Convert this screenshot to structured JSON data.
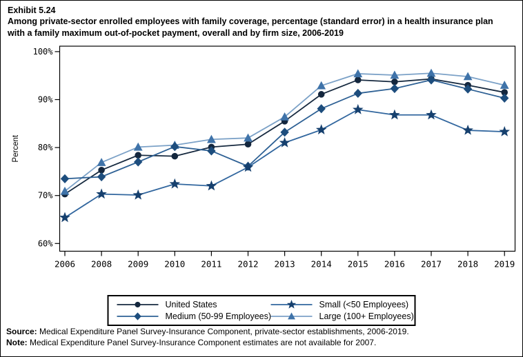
{
  "page": {
    "exhibit_label": "Exhibit 5.24",
    "title": "Among private-sector enrolled employees with family coverage, percentage (standard error) in a health insurance plan with a family maximum out-of-pocket payment, overall and by firm size, 2006-2019",
    "source_label": "Source:",
    "source_text": "Medical Expenditure Panel Survey-Insurance Component, private-sector establishments, 2006-2019.",
    "note_label": "Note:",
    "note_text": "Medical Expenditure Panel Survey-Insurance Component estimates are not available for 2007."
  },
  "chart_data": {
    "type": "line",
    "title": "Percentage in a health insurance plan with a family maximum out-of-pocket payment, overall and by firm size, 2006-2019",
    "xlabel": "",
    "ylabel": "Percent",
    "x": [
      2006,
      2008,
      2009,
      2010,
      2011,
      2012,
      2013,
      2014,
      2015,
      2016,
      2017,
      2018,
      2019
    ],
    "ylim": [
      60,
      100
    ],
    "yticks": [
      100,
      90,
      80,
      70,
      60
    ],
    "ytick_labels": [
      "100%",
      "90%",
      "80%",
      "70%",
      "60%"
    ],
    "grid": false,
    "legend_position": "bottom",
    "series": [
      {
        "key": "us",
        "name": "United States",
        "marker": "circle",
        "line_color": "#16293f",
        "marker_color": "#14273e",
        "values": [
          70.3,
          75.3,
          78.4,
          78.2,
          80.1,
          80.7,
          85.5,
          91.1,
          94.1,
          93.7,
          94.3,
          93.0,
          91.5
        ]
      },
      {
        "key": "small",
        "name": "Small (<50 Employees)",
        "marker": "star",
        "line_color": "#31669e",
        "marker_color": "#16406e",
        "values": [
          65.4,
          70.3,
          70.1,
          72.4,
          72.0,
          75.9,
          81.0,
          83.7,
          87.9,
          86.8,
          86.8,
          83.6,
          83.3
        ]
      },
      {
        "key": "medium",
        "name": "Medium (50-99 Employees)",
        "marker": "diamond",
        "line_color": "#2d6094",
        "marker_color": "#1d4d7d",
        "values": [
          73.5,
          73.9,
          77.0,
          80.2,
          79.3,
          76.1,
          83.2,
          88.1,
          91.3,
          92.3,
          94.1,
          92.2,
          90.3
        ]
      },
      {
        "key": "large",
        "name": "Large (100+ Employees)",
        "marker": "triangle",
        "line_color": "#7ba1c7",
        "marker_color": "#3f73a9",
        "values": [
          70.9,
          76.9,
          80.1,
          80.5,
          81.7,
          82.0,
          86.4,
          92.9,
          95.4,
          95.1,
          95.5,
          94.8,
          93.0
        ]
      }
    ],
    "draw_order": [
      "us",
      "large",
      "medium",
      "small"
    ]
  }
}
